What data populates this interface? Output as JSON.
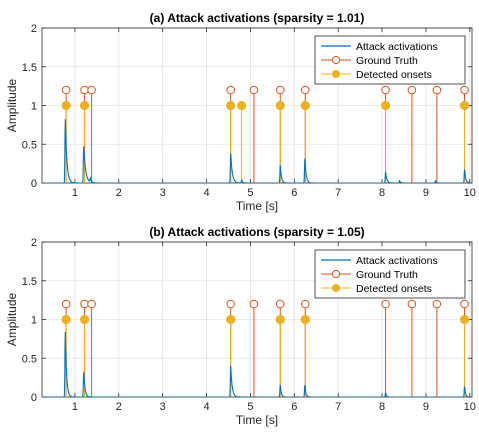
{
  "chart_data": [
    {
      "type": "line",
      "title": "(a) Attack activations (sparsity = 1.01)",
      "xlabel": "Time [s]",
      "ylabel": "Amplitude",
      "xlim": [
        0.25,
        10.05
      ],
      "ylim": [
        0,
        2
      ],
      "xticks": [
        1,
        2,
        3,
        4,
        5,
        6,
        7,
        8,
        9,
        10
      ],
      "yticks": [
        0,
        0.5,
        1,
        1.5,
        2
      ],
      "ytick_labels": [
        "0",
        "0.5",
        "1",
        "1.5",
        "2"
      ],
      "grid": true,
      "legend_position": "top-right",
      "legend": [
        "Attack activations",
        "Ground Truth",
        "Detected onsets"
      ],
      "colors": {
        "activation": "#0072bd",
        "ground_truth": "#d95319",
        "detected": "#edb120"
      },
      "series": [
        {
          "name": "Attack activations",
          "kind": "line",
          "peaks": [
            {
              "x": 0.78,
              "y": 0.87,
              "w": 0.1
            },
            {
              "x": 1.2,
              "y": 0.5,
              "w": 0.12
            },
            {
              "x": 1.35,
              "y": 0.05,
              "w": 0.08
            },
            {
              "x": 4.55,
              "y": 0.4,
              "w": 0.1
            },
            {
              "x": 4.8,
              "y": 0.04,
              "w": 0.06
            },
            {
              "x": 5.68,
              "y": 0.25,
              "w": 0.07
            },
            {
              "x": 6.24,
              "y": 0.34,
              "w": 0.08
            },
            {
              "x": 8.08,
              "y": 0.15,
              "w": 0.08
            },
            {
              "x": 8.4,
              "y": 0.03,
              "w": 0.06
            },
            {
              "x": 9.22,
              "y": 0.03,
              "w": 0.05
            },
            {
              "x": 9.88,
              "y": 0.19,
              "w": 0.07
            }
          ]
        },
        {
          "name": "Ground Truth",
          "kind": "stem",
          "marker": "open-circle",
          "x": [
            0.8,
            1.22,
            1.38,
            4.55,
            5.08,
            5.68,
            6.25,
            8.08,
            8.68,
            9.25,
            9.88
          ],
          "y": 1.2
        },
        {
          "name": "Detected onsets",
          "kind": "stem",
          "marker": "filled-circle",
          "x": [
            0.8,
            1.22,
            4.55,
            4.8,
            5.68,
            6.25,
            8.08,
            9.88
          ],
          "y": 1.0
        }
      ]
    },
    {
      "type": "line",
      "title": "(b) Attack activations (sparsity = 1.05)",
      "xlabel": "Time [s]",
      "ylabel": "Amplitude",
      "xlim": [
        0.25,
        10.05
      ],
      "ylim": [
        0,
        2
      ],
      "xticks": [
        1,
        2,
        3,
        4,
        5,
        6,
        7,
        8,
        9,
        10
      ],
      "yticks": [
        0,
        0.5,
        1,
        1.5,
        2
      ],
      "ytick_labels": [
        "0",
        "0.5",
        "1",
        "1.5",
        "2"
      ],
      "grid": true,
      "legend_position": "top-right",
      "legend": [
        "Attack activations",
        "Ground Truth",
        "Detected onsets"
      ],
      "colors": {
        "activation": "#0072bd",
        "ground_truth": "#d95319",
        "detected": "#edb120"
      },
      "series": [
        {
          "name": "Attack activations",
          "kind": "line",
          "peaks": [
            {
              "x": 0.78,
              "y": 0.9,
              "w": 0.08
            },
            {
              "x": 1.2,
              "y": 0.35,
              "w": 0.08
            },
            {
              "x": 4.55,
              "y": 0.42,
              "w": 0.09
            },
            {
              "x": 5.68,
              "y": 0.17,
              "w": 0.06
            },
            {
              "x": 6.24,
              "y": 0.17,
              "w": 0.06
            },
            {
              "x": 8.08,
              "y": 0.06,
              "w": 0.05
            },
            {
              "x": 9.88,
              "y": 0.15,
              "w": 0.06
            }
          ]
        },
        {
          "name": "Ground Truth",
          "kind": "stem",
          "marker": "open-circle",
          "x": [
            0.8,
            1.22,
            1.38,
            4.55,
            5.08,
            5.68,
            6.25,
            8.08,
            8.68,
            9.25,
            9.88
          ],
          "y": 1.2
        },
        {
          "name": "Detected onsets",
          "kind": "stem",
          "marker": "filled-circle",
          "x": [
            0.8,
            1.22,
            4.55,
            5.68,
            6.25,
            9.88
          ],
          "y": 1.0
        }
      ]
    }
  ]
}
